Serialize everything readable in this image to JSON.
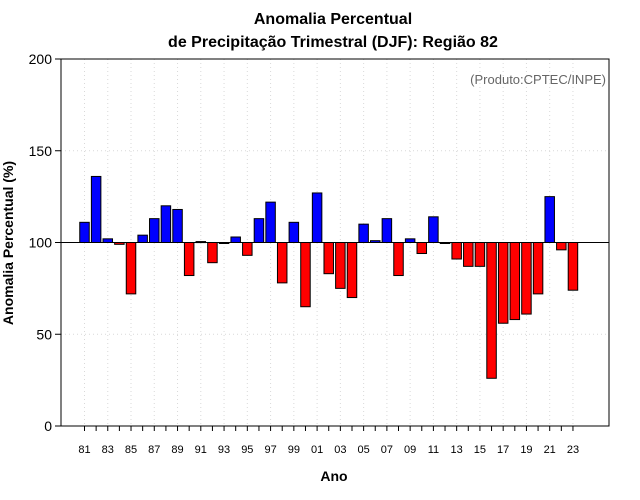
{
  "chart_data": {
    "type": "bar",
    "title_line1": "Anomalia Percentual",
    "title_line2": "de Precipitação Trimestral (DJF): Região 82",
    "xlabel": "Ano",
    "ylabel": "Anomalia Percentual (%)",
    "credit": "(Produto:CPTEC/INPE)",
    "ylim": [
      0,
      200
    ],
    "yticks": [
      0,
      50,
      100,
      150,
      200
    ],
    "baseline": 100,
    "grid": true,
    "tick_labels": [
      "81",
      "83",
      "85",
      "87",
      "89",
      "91",
      "93",
      "95",
      "97",
      "99",
      "01",
      "03",
      "05",
      "07",
      "09",
      "11",
      "13",
      "15",
      "17",
      "19",
      "21",
      "23"
    ],
    "categories": [
      "81",
      "82",
      "83",
      "84",
      "85",
      "86",
      "87",
      "88",
      "89",
      "90",
      "91",
      "92",
      "93",
      "94",
      "95",
      "96",
      "97",
      "98",
      "99",
      "00",
      "01",
      "02",
      "03",
      "04",
      "05",
      "06",
      "07",
      "08",
      "09",
      "10",
      "11",
      "12",
      "13",
      "14",
      "15",
      "16",
      "17",
      "18",
      "19",
      "20",
      "21",
      "22",
      "23"
    ],
    "values": [
      111,
      136,
      102,
      99,
      72,
      104,
      113,
      120,
      118,
      82,
      100.5,
      89,
      99.5,
      103,
      93,
      113,
      122,
      78,
      111,
      65,
      127,
      83,
      75,
      70,
      110,
      101,
      113,
      82,
      102,
      94,
      114,
      99.5,
      91,
      87,
      87,
      26,
      56,
      58,
      61,
      72,
      125,
      96,
      74
    ],
    "colors": {
      "above": "#0000ff",
      "below": "#ff0000",
      "outline": "#000000",
      "grid": "#d9d9d9"
    }
  }
}
